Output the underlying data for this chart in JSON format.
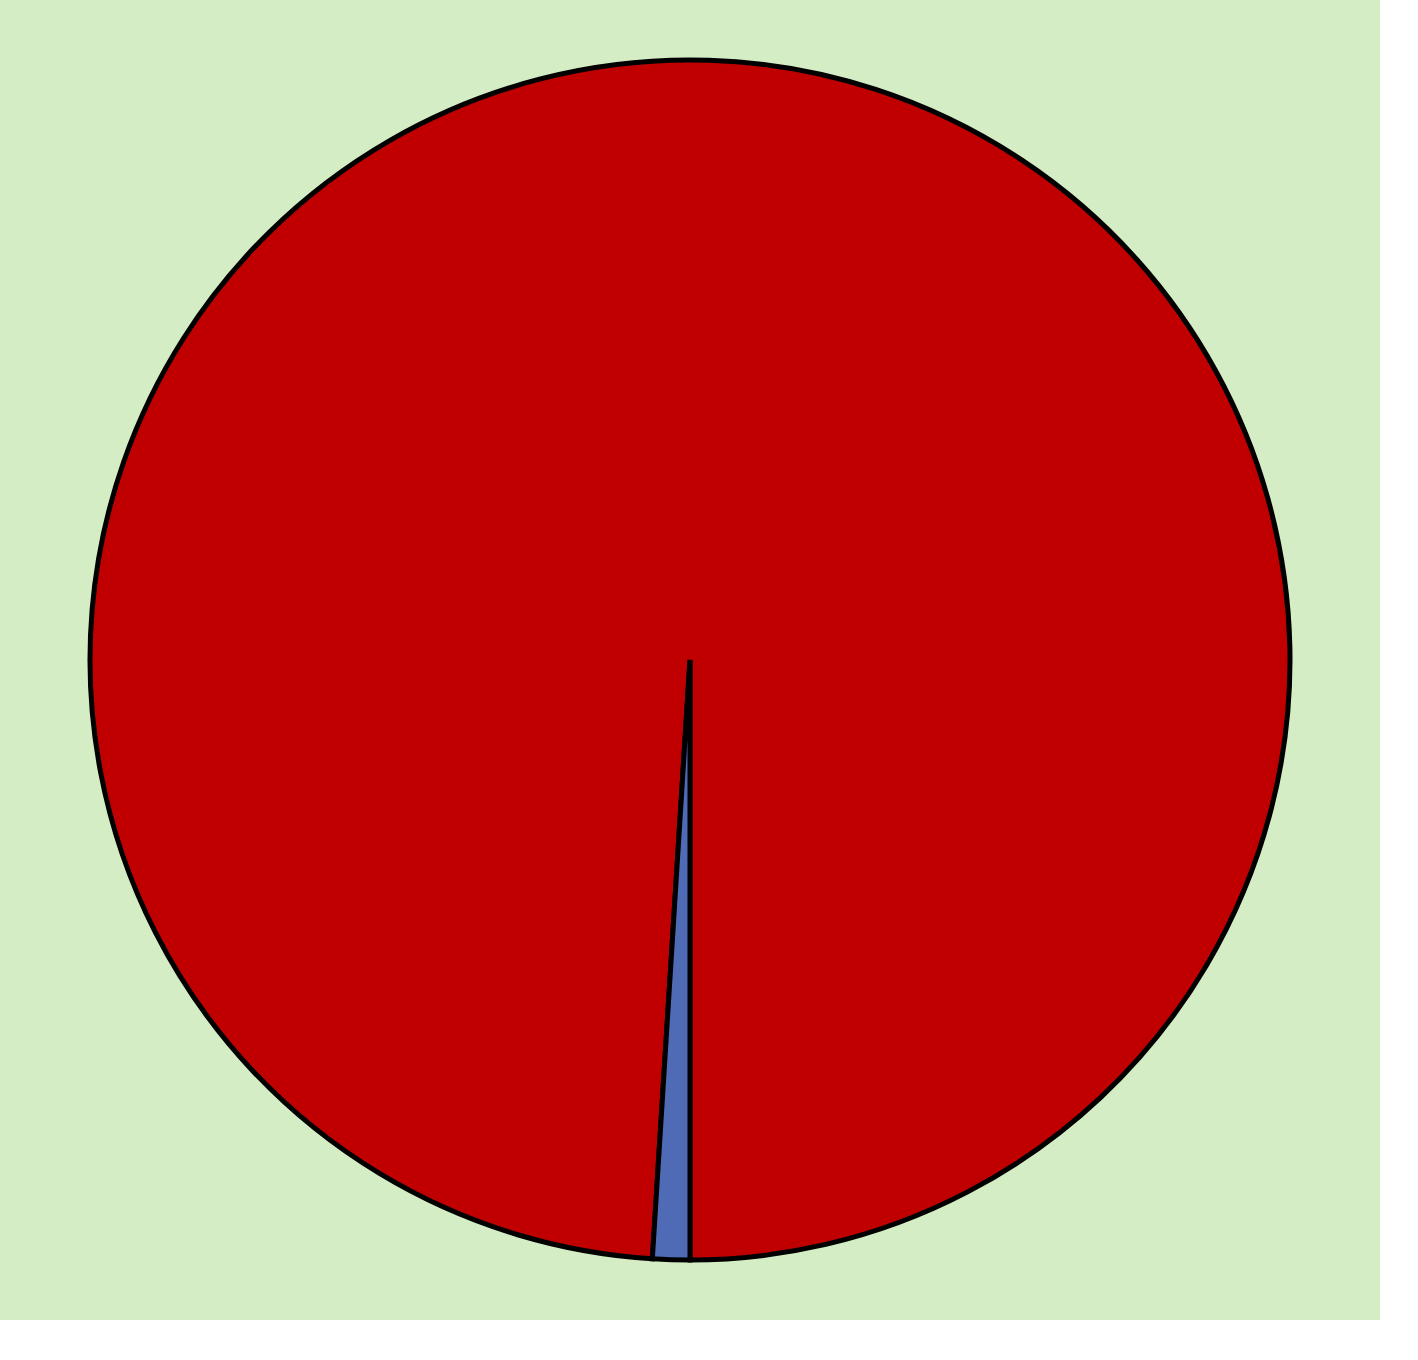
{
  "chart_data": {
    "type": "pie",
    "categories": [
      null,
      null
    ],
    "values": [
      99,
      1
    ],
    "colors": [
      "#c00000",
      "#4f6bb5"
    ]
  }
}
